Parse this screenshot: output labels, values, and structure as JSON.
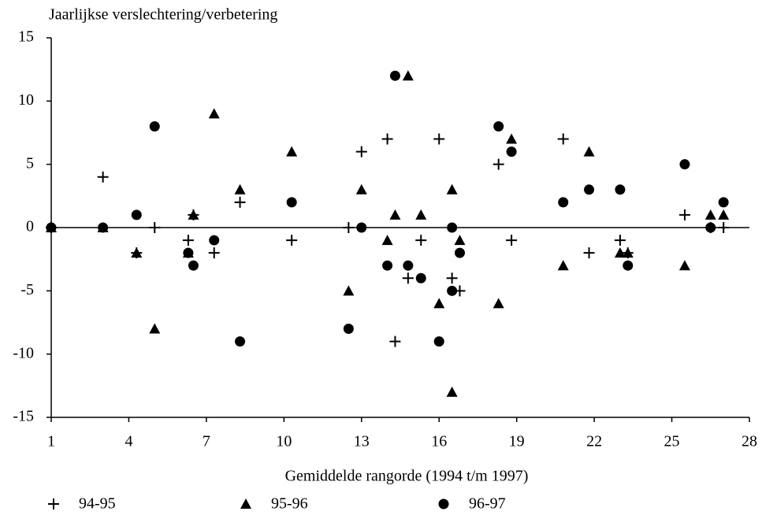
{
  "chart_data": {
    "type": "scatter",
    "ylabel": "Jaarlijkse verslechtering/verbetering",
    "xlabel": "Gemiddelde rangorde (1994 t/m 1997)",
    "xlim": [
      1,
      28
    ],
    "xticks": [
      1,
      4,
      7,
      10,
      13,
      16,
      19,
      22,
      25,
      28
    ],
    "ylim": [
      -15,
      15
    ],
    "yticks": [
      -15,
      -10,
      -5,
      0,
      5,
      10,
      15
    ],
    "zero_line": true,
    "legend": "bottom",
    "series": [
      {
        "name": "94-95",
        "marker": "plus",
        "color": "#000000",
        "x": [
          1,
          3,
          4.3,
          5,
          6.3,
          6.5,
          7.3,
          8.3,
          10.3,
          12.5,
          13,
          14,
          14.3,
          14.8,
          15.3,
          16,
          16.5,
          16.8,
          18.3,
          18.8,
          20.8,
          21.8,
          23,
          23.3,
          25.5,
          26.5,
          27
        ],
        "y": [
          0,
          4,
          -2,
          0,
          -1,
          1,
          -2,
          2,
          -1,
          0,
          6,
          7,
          -9,
          -4,
          -1,
          7,
          -4,
          -5,
          5,
          -1,
          7,
          -2,
          -1,
          -2,
          1,
          0,
          0
        ]
      },
      {
        "name": "95-96",
        "marker": "triangle",
        "color": "#000000",
        "x": [
          1,
          3,
          4.3,
          5,
          6.3,
          6.5,
          7.3,
          8.3,
          10.3,
          12.5,
          13,
          14,
          14.3,
          14.8,
          15.3,
          16,
          16.5,
          16.5,
          16.8,
          18.3,
          18.8,
          20.8,
          21.8,
          23,
          23.3,
          25.5,
          26.5,
          27
        ],
        "y": [
          0,
          0,
          -2,
          -8,
          -2,
          1,
          9,
          3,
          6,
          -5,
          3,
          -1,
          1,
          12,
          1,
          -6,
          -13,
          3,
          -1,
          -6,
          7,
          -3,
          6,
          -2,
          -2,
          -3,
          1,
          1
        ]
      },
      {
        "name": "96-97",
        "marker": "circle",
        "color": "#000000",
        "x": [
          1,
          3,
          4.3,
          5,
          6.3,
          6.5,
          7.3,
          8.3,
          10.3,
          12.5,
          13,
          14,
          14.3,
          14.8,
          15.3,
          16,
          16.5,
          16.5,
          16.8,
          18.3,
          18.8,
          20.8,
          21.8,
          23,
          23.3,
          25.5,
          26.5,
          27
        ],
        "y": [
          0,
          0,
          1,
          8,
          -2,
          -3,
          -1,
          -9,
          2,
          -8,
          0,
          -3,
          12,
          -3,
          -4,
          -9,
          -5,
          0,
          -2,
          8,
          6,
          2,
          3,
          3,
          -3,
          5,
          0,
          2
        ]
      }
    ]
  }
}
